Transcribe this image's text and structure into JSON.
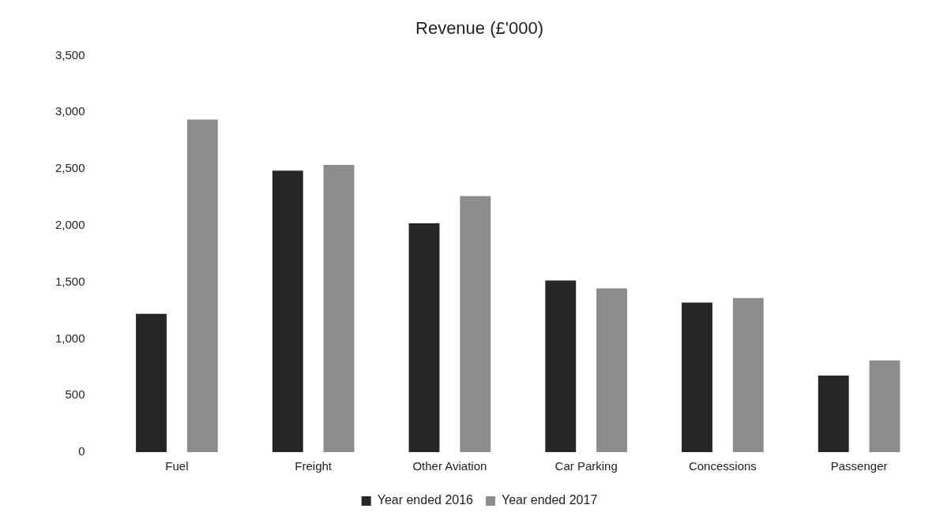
{
  "chart_data": {
    "type": "bar",
    "title": "Revenue (£'000)",
    "categories": [
      "Fuel",
      "Freight",
      "Other Aviation",
      "Car Parking",
      "Concessions",
      "Passenger"
    ],
    "series": [
      {
        "name": "Year ended 2016",
        "color": "#262626",
        "values": [
          1220,
          2485,
          2020,
          1515,
          1320,
          675
        ]
      },
      {
        "name": "Year ended 2017",
        "color": "#8c8c8c",
        "values": [
          2935,
          2535,
          2260,
          1445,
          1360,
          810
        ]
      }
    ],
    "ylim": [
      0,
      3500
    ],
    "yticks": [
      0,
      500,
      {
        "value": 1000,
        "label": "1,000"
      },
      {
        "value": 1500,
        "label": "1,500"
      },
      {
        "value": 2000,
        "label": "2,000"
      },
      {
        "value": 2500,
        "label": "2,500"
      },
      {
        "value": 3000,
        "label": "3,000"
      },
      {
        "value": 3500,
        "label": "3,500"
      }
    ],
    "grid": false,
    "legend": "bottom"
  }
}
